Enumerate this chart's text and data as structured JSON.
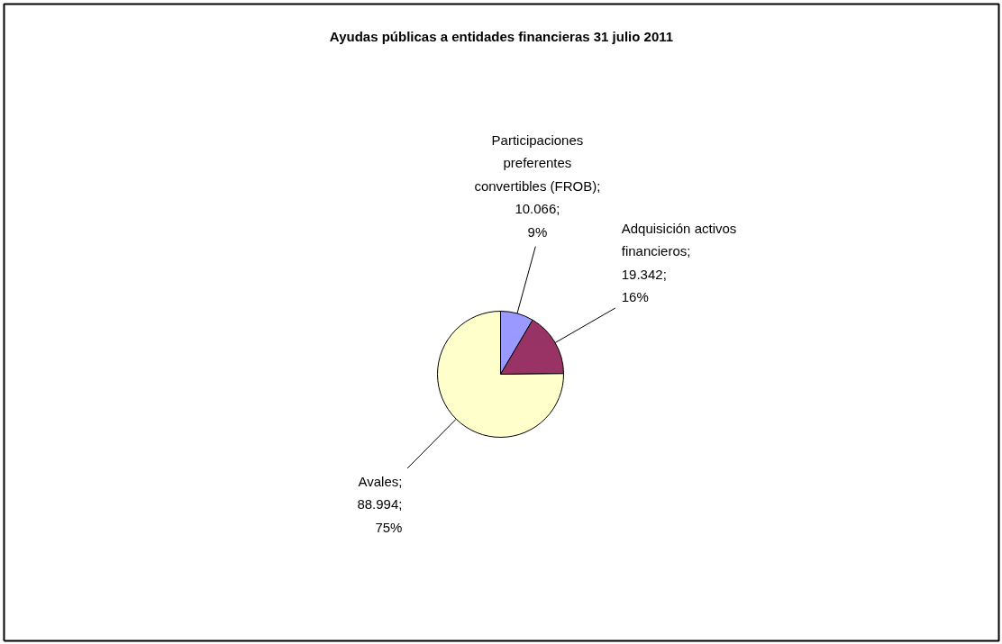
{
  "chart_data": {
    "type": "pie",
    "title": "Ayudas públicas a entidades financieras 31 julio 2011",
    "categories": [
      "Participaciones\npreferentes\nconvertibles (FROB)",
      "Adquisición activos\nfinancieros",
      "Avales"
    ],
    "values": [
      10066,
      19342,
      88994
    ],
    "colors": [
      "#9999ff",
      "#993366",
      "#ffffcc"
    ],
    "value_labels": [
      ";\n10.066;\n9%",
      ";\n19.342;\n16%",
      ";\n88.994;\n75%"
    ]
  }
}
